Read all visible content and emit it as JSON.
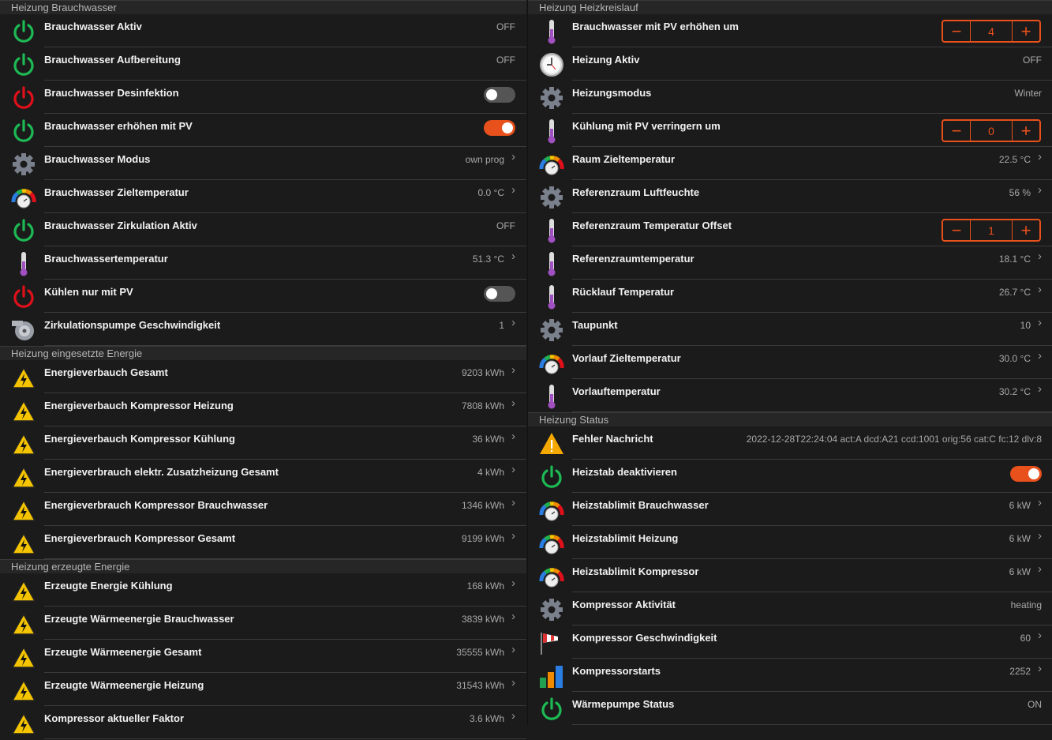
{
  "colors": {
    "accent": "#e8501c",
    "power_on": "#1db954",
    "power_off": "#e0101a",
    "gear": "#7a808c"
  },
  "left": [
    {
      "title": "Heizung Brauchwasser",
      "items": [
        {
          "label": "Brauchwasser Aktiv",
          "value": "OFF",
          "icon": "power-green",
          "control": "text"
        },
        {
          "label": "Brauchwasser Aufbereitung",
          "value": "OFF",
          "icon": "power-green",
          "control": "text"
        },
        {
          "label": "Brauchwasser Desinfektion",
          "icon": "power-red",
          "control": "toggle",
          "on": false
        },
        {
          "label": "Brauchwasser erhöhen mit PV",
          "icon": "power-green",
          "control": "toggle",
          "on": true
        },
        {
          "label": "Brauchwasser Modus",
          "value": "own prog",
          "icon": "gear",
          "control": "chevron"
        },
        {
          "label": "Brauchwasser Zieltemperatur",
          "value": "0.0 °C",
          "icon": "gauge",
          "control": "chevron"
        },
        {
          "label": "Brauchwasser Zirkulation Aktiv",
          "value": "OFF",
          "icon": "power-green",
          "control": "text"
        },
        {
          "label": "Brauchwassertemperatur",
          "value": "51.3 °C",
          "icon": "thermometer",
          "control": "chevron"
        },
        {
          "label": "Kühlen nur mit PV",
          "icon": "power-red",
          "control": "toggle",
          "on": false
        },
        {
          "label": "Zirkulationspumpe Geschwindigkeit",
          "value": "1",
          "icon": "pump",
          "control": "chevron"
        }
      ]
    },
    {
      "title": "Heizung eingesetzte Energie",
      "items": [
        {
          "label": "Energieverbauch Gesamt",
          "value": "9203 kWh",
          "icon": "warning-lightning",
          "control": "chevron"
        },
        {
          "label": "Energieverbauch Kompressor Heizung",
          "value": "7808 kWh",
          "icon": "warning-lightning",
          "control": "chevron"
        },
        {
          "label": "Energieverbauch Kompressor Kühlung",
          "value": "36 kWh",
          "icon": "warning-lightning",
          "control": "chevron"
        },
        {
          "label": "Energieverbrauch elektr. Zusatzheizung Gesamt",
          "value": "4 kWh",
          "icon": "warning-lightning",
          "control": "chevron"
        },
        {
          "label": "Energieverbrauch Kompressor Brauchwasser",
          "value": "1346 kWh",
          "icon": "warning-lightning",
          "control": "chevron"
        },
        {
          "label": "Energieverbrauch Kompressor Gesamt",
          "value": "9199 kWh",
          "icon": "warning-lightning",
          "control": "chevron"
        }
      ]
    },
    {
      "title": "Heizung erzeugte Energie",
      "items": [
        {
          "label": "Erzeugte Energie Kühlung",
          "value": "168 kWh",
          "icon": "warning-lightning",
          "control": "chevron"
        },
        {
          "label": "Erzeugte Wärmeenergie Brauchwasser",
          "value": "3839 kWh",
          "icon": "warning-lightning",
          "control": "chevron"
        },
        {
          "label": "Erzeugte Wärmeenergie Gesamt",
          "value": "35555 kWh",
          "icon": "warning-lightning",
          "control": "chevron"
        },
        {
          "label": "Erzeugte Wärmeenergie Heizung",
          "value": "31543 kWh",
          "icon": "warning-lightning",
          "control": "chevron"
        },
        {
          "label": "Kompressor aktueller Faktor",
          "value": "3.6 kWh",
          "icon": "warning-lightning",
          "control": "chevron"
        }
      ]
    }
  ],
  "right": [
    {
      "title": "Heizung Heizkreislauf",
      "items": [
        {
          "label": "Brauchwasser mit PV erhöhen um",
          "value": "4",
          "icon": "thermometer",
          "control": "stepper",
          "minus": "−",
          "plus": "+"
        },
        {
          "label": "Heizung Aktiv",
          "value": "OFF",
          "icon": "clock",
          "control": "text"
        },
        {
          "label": "Heizungsmodus",
          "value": "Winter",
          "icon": "gear",
          "control": "text"
        },
        {
          "label": "Kühlung mit PV verringern um",
          "value": "0",
          "icon": "thermometer",
          "control": "stepper",
          "minus": "−",
          "plus": "+"
        },
        {
          "label": "Raum Zieltemperatur",
          "value": "22.5 °C",
          "icon": "gauge",
          "control": "chevron"
        },
        {
          "label": "Referenzraum Luftfeuchte",
          "value": "56 %",
          "icon": "gear",
          "control": "chevron"
        },
        {
          "label": "Referenzraum Temperatur Offset",
          "value": "1",
          "icon": "thermometer",
          "control": "stepper",
          "minus": "−",
          "plus": "+"
        },
        {
          "label": "Referenzraumtemperatur",
          "value": "18.1 °C",
          "icon": "thermometer",
          "control": "chevron"
        },
        {
          "label": "Rücklauf Temperatur",
          "value": "26.7 °C",
          "icon": "thermometer",
          "control": "chevron"
        },
        {
          "label": "Taupunkt",
          "value": "10",
          "icon": "gear",
          "control": "chevron"
        },
        {
          "label": "Vorlauf Zieltemperatur",
          "value": "30.0 °C",
          "icon": "gauge",
          "control": "chevron"
        },
        {
          "label": "Vorlauftemperatur",
          "value": "30.2 °C",
          "icon": "thermometer",
          "control": "chevron"
        }
      ]
    },
    {
      "title": "Heizung Status",
      "items": [
        {
          "label": "Fehler Nachricht",
          "value": "2022-12-28T22:24:04 act:A dcd:A21 ccd:1001 orig:56 cat:C fc:12 dlv:8",
          "icon": "warning",
          "control": "text"
        },
        {
          "label": "Heizstab deaktivieren",
          "icon": "power-green",
          "control": "toggle",
          "on": true
        },
        {
          "label": "Heizstablimit Brauchwasser",
          "value": "6 kW",
          "icon": "gauge",
          "control": "chevron"
        },
        {
          "label": "Heizstablimit Heizung",
          "value": "6 kW",
          "icon": "gauge",
          "control": "chevron"
        },
        {
          "label": "Heizstablimit Kompressor",
          "value": "6 kW",
          "icon": "gauge",
          "control": "chevron"
        },
        {
          "label": "Kompressor Aktivität",
          "value": "heating",
          "icon": "gear",
          "control": "text"
        },
        {
          "label": "Kompressor Geschwindigkeit",
          "value": "60",
          "icon": "windsock",
          "control": "chevron"
        },
        {
          "label": "Kompressorstarts",
          "value": "2252",
          "icon": "bar-chart",
          "control": "chevron"
        },
        {
          "label": "Wärmepumpe Status",
          "value": "ON",
          "icon": "power-green",
          "control": "text"
        }
      ]
    }
  ],
  "chevron": "›"
}
